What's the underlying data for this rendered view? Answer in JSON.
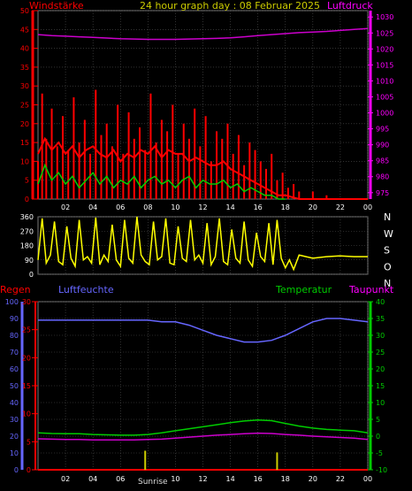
{
  "header": {
    "left_label": "Windstärke",
    "title": "24 hour graph day : 08 Februar 2025",
    "right_label": "Luftdruck"
  },
  "bottom_labels": {
    "rain": "Regen",
    "humidity": "Luftfeuchte",
    "temperature": "Temperatur",
    "dewpoint": "Taupunkt"
  },
  "sunrise_label": "Sunrise",
  "colors": {
    "wind": "#ff0000",
    "gust": "#ff0000",
    "avg_wind": "#00cc00",
    "pressure": "#cc00cc",
    "direction": "#ffff00",
    "humidity": "#6666ff",
    "temperature": "#00cc00",
    "dewpoint": "#cc00cc",
    "rain": "#ff0000",
    "sun": "#cccc00",
    "grid": "#505050",
    "left_axis": "#ff0000",
    "right_axis": "#ff00ff"
  },
  "chart_data": [
    {
      "type": "line",
      "name": "wind-pressure",
      "x_ticks": [
        "02",
        "04",
        "06",
        "08",
        "10",
        "12",
        "14",
        "16",
        "18",
        "20",
        "22",
        "00"
      ],
      "xlim": [
        0,
        24
      ],
      "y_left_ticks": [
        0,
        5,
        10,
        15,
        20,
        25,
        30,
        35,
        40,
        45,
        50
      ],
      "ylim_left": [
        0,
        50
      ],
      "y_right_ticks": [
        975,
        980,
        985,
        990,
        995,
        1000,
        1005,
        1010,
        1015,
        1020,
        1025,
        1030
      ],
      "ylim_right": [
        973,
        1032
      ],
      "series": [
        {
          "role": "gust",
          "x": [
            0.0,
            0.3,
            0.6,
            1.0,
            1.4,
            1.8,
            2.2,
            2.6,
            3.0,
            3.4,
            3.8,
            4.2,
            4.6,
            5.0,
            5.4,
            5.8,
            6.2,
            6.6,
            7.0,
            7.4,
            7.8,
            8.2,
            8.6,
            9.0,
            9.4,
            9.8,
            10.2,
            10.6,
            11.0,
            11.4,
            11.8,
            12.2,
            12.6,
            13.0,
            13.4,
            13.8,
            14.2,
            14.6,
            15.0,
            15.4,
            15.8,
            16.2,
            16.6,
            17.0,
            17.4,
            17.8,
            18.2,
            18.6,
            19.0,
            20.0,
            21.0,
            22.0,
            23.0,
            24.0
          ],
          "values": [
            10,
            28,
            16,
            24,
            14,
            22,
            13,
            27,
            15,
            21,
            12,
            29,
            17,
            20,
            14,
            25,
            12,
            23,
            16,
            19,
            13,
            28,
            15,
            21,
            18,
            25,
            12,
            20,
            16,
            24,
            14,
            22,
            10,
            18,
            16,
            20,
            12,
            17,
            9,
            15,
            13,
            10,
            8,
            12,
            5,
            7,
            3,
            4,
            2,
            2,
            1,
            0,
            0,
            0
          ]
        },
        {
          "role": "wind",
          "x": [
            0.0,
            0.5,
            1.0,
            1.5,
            2.0,
            2.5,
            3.0,
            3.5,
            4.0,
            4.5,
            5.0,
            5.5,
            6.0,
            6.5,
            7.0,
            7.5,
            8.0,
            8.5,
            9.0,
            9.5,
            10.0,
            10.5,
            11.0,
            11.5,
            12.0,
            12.5,
            13.0,
            13.5,
            14.0,
            14.5,
            15.0,
            15.5,
            16.0,
            16.5,
            17.0,
            17.5,
            18.0,
            19.0,
            20.0,
            21.0,
            22.0,
            23.0,
            24.0
          ],
          "values": [
            12,
            16,
            13,
            15,
            12,
            14,
            11,
            13,
            14,
            12,
            11,
            13,
            10,
            12,
            11,
            13,
            12,
            14,
            11,
            13,
            12,
            12,
            10,
            11,
            10,
            9,
            9,
            10,
            8,
            7,
            6,
            5,
            4,
            3,
            2,
            1,
            1,
            0,
            0,
            0,
            0,
            0,
            0
          ]
        },
        {
          "role": "avg_wind",
          "x": [
            0.0,
            0.5,
            1.0,
            1.5,
            2.0,
            2.5,
            3.0,
            3.5,
            4.0,
            4.5,
            5.0,
            5.5,
            6.0,
            6.5,
            7.0,
            7.5,
            8.0,
            8.5,
            9.0,
            9.5,
            10.0,
            10.5,
            11.0,
            11.5,
            12.0,
            12.5,
            13.0,
            13.5,
            14.0,
            14.5,
            15.0,
            15.5,
            16.0,
            16.5,
            17.0,
            17.5,
            18.0
          ],
          "values": [
            4,
            9,
            5,
            7,
            4,
            6,
            3,
            5,
            7,
            4,
            6,
            3,
            5,
            4,
            6,
            3,
            5,
            6,
            4,
            5,
            3,
            5,
            6,
            3,
            5,
            4,
            4,
            5,
            3,
            4,
            2,
            3,
            2,
            1,
            1,
            0,
            0
          ]
        },
        {
          "role": "pressure",
          "x": [
            0,
            1,
            2,
            3,
            4,
            5,
            6,
            7,
            8,
            9,
            10,
            11,
            12,
            13,
            14,
            15,
            16,
            17,
            18,
            19,
            20,
            21,
            22,
            23,
            24
          ],
          "values": [
            1024.5,
            1024.2,
            1024.0,
            1023.8,
            1023.6,
            1023.4,
            1023.2,
            1023.1,
            1023.0,
            1023.0,
            1023.0,
            1023.1,
            1023.2,
            1023.3,
            1023.5,
            1023.8,
            1024.2,
            1024.5,
            1024.8,
            1025.1,
            1025.3,
            1025.5,
            1025.8,
            1026.1,
            1026.4
          ]
        }
      ]
    },
    {
      "type": "line",
      "name": "wind-direction",
      "x_ticks": [
        "02",
        "04",
        "06",
        "08",
        "10",
        "12",
        "14",
        "16",
        "18",
        "20",
        "22",
        "00"
      ],
      "xlim": [
        0,
        24
      ],
      "y_ticks": [
        0,
        90,
        180,
        270,
        360
      ],
      "ylim": [
        0,
        360
      ],
      "compass_labels": [
        "N",
        "W",
        "S",
        "O",
        "N"
      ],
      "series": [
        {
          "role": "direction",
          "x": [
            0.0,
            0.3,
            0.6,
            0.9,
            1.2,
            1.5,
            1.8,
            2.1,
            2.4,
            2.7,
            3.0,
            3.3,
            3.6,
            3.9,
            4.2,
            4.5,
            4.8,
            5.1,
            5.4,
            5.7,
            6.0,
            6.3,
            6.6,
            6.9,
            7.2,
            7.5,
            7.8,
            8.1,
            8.4,
            8.7,
            9.0,
            9.3,
            9.6,
            9.9,
            10.2,
            10.5,
            10.8,
            11.1,
            11.4,
            11.7,
            12.0,
            12.3,
            12.6,
            12.9,
            13.2,
            13.5,
            13.8,
            14.1,
            14.4,
            14.7,
            15.0,
            15.3,
            15.6,
            15.9,
            16.2,
            16.5,
            16.8,
            17.1,
            17.4,
            17.7,
            18.0,
            18.3,
            18.6,
            19.0,
            19.5,
            20.0,
            21.0,
            22.0,
            23.0,
            24.0
          ],
          "values": [
            90,
            350,
            70,
            120,
            330,
            80,
            60,
            300,
            100,
            50,
            340,
            90,
            110,
            70,
            355,
            60,
            120,
            80,
            310,
            90,
            50,
            340,
            100,
            70,
            360,
            120,
            80,
            60,
            330,
            90,
            110,
            350,
            70,
            60,
            300,
            100,
            80,
            340,
            90,
            120,
            70,
            320,
            60,
            110,
            350,
            80,
            60,
            280,
            100,
            70,
            330,
            90,
            50,
            260,
            110,
            80,
            320,
            60,
            340,
            100,
            40,
            90,
            30,
            120,
            110,
            100,
            110,
            115,
            110,
            110
          ]
        }
      ]
    },
    {
      "type": "line",
      "name": "humidity-temperature",
      "x_ticks": [
        "02",
        "04",
        "06",
        "08",
        "10",
        "12",
        "14",
        "16",
        "18",
        "20",
        "22",
        "00"
      ],
      "xlim": [
        0,
        24
      ],
      "y_left_humidity_ticks": [
        0,
        10,
        20,
        30,
        40,
        50,
        60,
        70,
        80,
        90,
        100
      ],
      "ylim_humidity": [
        0,
        100
      ],
      "y_left_rain_ticks": [
        0,
        5,
        10,
        15,
        20,
        25,
        30
      ],
      "ylim_rain": [
        0,
        30
      ],
      "y_right_temp_ticks": [
        -10,
        -5,
        0,
        5,
        10,
        15,
        20,
        25,
        30,
        35,
        40
      ],
      "ylim_temp": [
        -10,
        40
      ],
      "series": [
        {
          "role": "humidity",
          "x": [
            0,
            1,
            2,
            3,
            4,
            5,
            6,
            7,
            8,
            9,
            10,
            11,
            12,
            13,
            14,
            15,
            16,
            17,
            18,
            19,
            20,
            21,
            22,
            23,
            24
          ],
          "values": [
            89,
            89,
            89,
            89,
            89,
            89,
            89,
            89,
            89,
            88,
            88,
            86,
            83,
            80,
            78,
            76,
            76,
            77,
            80,
            84,
            88,
            90,
            90,
            89,
            88
          ]
        },
        {
          "role": "temperature",
          "x": [
            0,
            1,
            2,
            3,
            4,
            5,
            6,
            7,
            8,
            9,
            10,
            11,
            12,
            13,
            14,
            15,
            16,
            17,
            18,
            19,
            20,
            21,
            22,
            23,
            24
          ],
          "values": [
            1.0,
            0.8,
            0.7,
            0.7,
            0.5,
            0.4,
            0.3,
            0.3,
            0.5,
            1.0,
            1.6,
            2.2,
            2.8,
            3.4,
            4.0,
            4.5,
            4.8,
            4.6,
            3.8,
            3.0,
            2.4,
            2.0,
            1.8,
            1.6,
            1.0
          ]
        },
        {
          "role": "dewpoint",
          "x": [
            0,
            1,
            2,
            3,
            4,
            5,
            6,
            7,
            8,
            9,
            10,
            11,
            12,
            13,
            14,
            15,
            16,
            17,
            18,
            19,
            20,
            21,
            22,
            23,
            24
          ],
          "values": [
            -0.8,
            -0.9,
            -1.0,
            -1.0,
            -1.1,
            -1.1,
            -1.1,
            -1.1,
            -1.0,
            -0.9,
            -0.6,
            -0.3,
            0.0,
            0.3,
            0.5,
            0.7,
            0.9,
            0.8,
            0.5,
            0.3,
            0.0,
            -0.2,
            -0.4,
            -0.6,
            -1.0
          ]
        },
        {
          "role": "rain",
          "x": [
            0,
            24
          ],
          "values": [
            0,
            0
          ]
        }
      ],
      "sun_markers": [
        {
          "hour": 7.8,
          "level": 3.4
        },
        {
          "hour": 17.4,
          "level": 3.1
        }
      ]
    }
  ]
}
